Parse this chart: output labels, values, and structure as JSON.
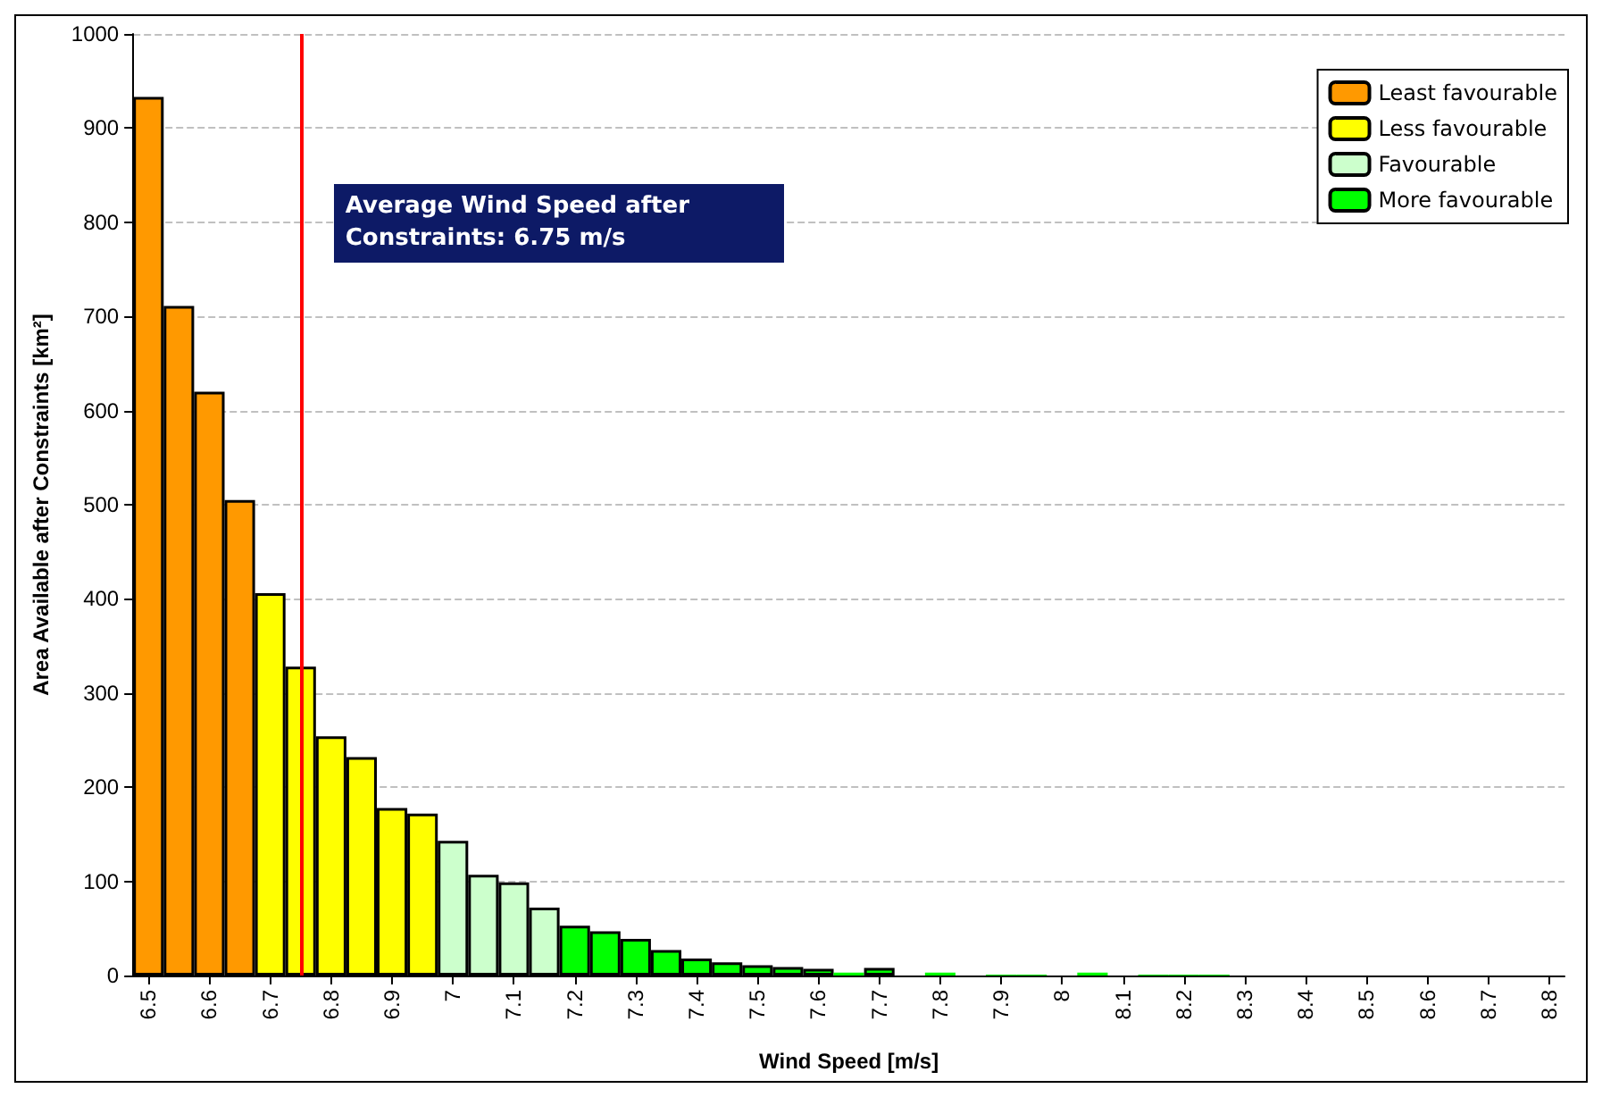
{
  "chart_data": {
    "type": "bar",
    "xlabel": "Wind Speed [m/s]",
    "ylabel": "Area Available after Constraints [km²]",
    "xlim": [
      6.475,
      8.825
    ],
    "xticks": [
      6.5,
      6.6,
      6.7,
      6.8,
      6.9,
      7,
      7.1,
      7.2,
      7.3,
      7.4,
      7.5,
      7.6,
      7.7,
      7.8,
      7.9,
      8,
      8.1,
      8.2,
      8.3,
      8.4,
      8.5,
      8.6,
      8.7,
      8.8
    ],
    "ylim": [
      0,
      1000
    ],
    "yticks": [
      0,
      100,
      200,
      300,
      400,
      500,
      600,
      700,
      800,
      900,
      1000
    ],
    "grid": "y",
    "legend": "top right",
    "series": [
      {
        "name": "Least favourable",
        "color": "#ff9900",
        "x": [
          6.5,
          6.55,
          6.6,
          6.65
        ],
        "values": [
          933,
          711,
          620,
          505
        ]
      },
      {
        "name": "Less favourable",
        "color": "#ffff00",
        "x": [
          6.7,
          6.75,
          6.8,
          6.85,
          6.9,
          6.95
        ],
        "values": [
          406,
          328,
          254,
          232,
          178,
          172
        ]
      },
      {
        "name": "Favourable",
        "color": "#ccffcc",
        "x": [
          7,
          7.05,
          7.1,
          7.15
        ],
        "values": [
          143,
          107,
          99,
          72
        ]
      },
      {
        "name": "More favourable",
        "color": "#00ff00",
        "x": [
          7.2,
          7.25,
          7.3,
          7.35,
          7.4,
          7.45,
          7.5,
          7.55,
          7.6,
          7.65,
          7.7,
          7.75,
          7.8,
          7.85,
          7.9,
          7.95,
          8,
          8.05,
          8.1,
          8.15,
          8.2,
          8.25
        ],
        "values": [
          53,
          47,
          39,
          27,
          18,
          14,
          11,
          9,
          7,
          3,
          8,
          null,
          3,
          null,
          1,
          1,
          null,
          3,
          null,
          1,
          1,
          1
        ]
      }
    ],
    "ref_lines": [
      {
        "axis": "x",
        "value": 6.75,
        "label": "Average Wind Speed after Constraints: 6.75 m/s",
        "color": "#ff0000"
      }
    ]
  }
}
